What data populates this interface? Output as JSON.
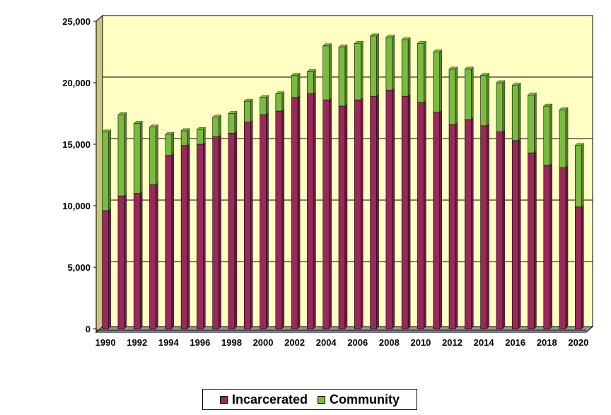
{
  "chart_data": {
    "type": "bar",
    "stacked": true,
    "title": "",
    "xlabel": "",
    "ylabel": "",
    "ylim": [
      0,
      25000
    ],
    "yticks": [
      0,
      5000,
      10000,
      15000,
      20000,
      25000
    ],
    "ytick_labels": [
      "0",
      "5,000",
      "10,000",
      "15,000",
      "20,000",
      "25,000"
    ],
    "grid": true,
    "legend_position": "bottom",
    "categories": [
      "1990",
      "1991",
      "1992",
      "1993",
      "1994",
      "1995",
      "1996",
      "1997",
      "1998",
      "1999",
      "2000",
      "2001",
      "2002",
      "2003",
      "2004",
      "2005",
      "2006",
      "2007",
      "2008",
      "2009",
      "2010",
      "2011",
      "2012",
      "2013",
      "2014",
      "2015",
      "2016",
      "2017",
      "2018",
      "2019",
      "2020"
    ],
    "x_tick_labels": [
      "1990",
      "1992",
      "1994",
      "1996",
      "1998",
      "2000",
      "2002",
      "2004",
      "2006",
      "2008",
      "2010",
      "2012",
      "2014",
      "2016",
      "2018",
      "2020"
    ],
    "series": [
      {
        "name": "Incarcerated",
        "color": "#99295a",
        "values": [
          9600,
          10800,
          11000,
          11700,
          14100,
          14900,
          15000,
          15600,
          15900,
          16800,
          17400,
          17700,
          18800,
          19100,
          18600,
          18100,
          18600,
          18900,
          19400,
          18900,
          18400,
          17600,
          16600,
          17000,
          16500,
          16000,
          15300,
          14300,
          13300,
          13100,
          9900
        ]
      },
      {
        "name": "Community",
        "color": "#7aba3e",
        "values": [
          6400,
          6600,
          5700,
          4700,
          1700,
          1200,
          1200,
          1600,
          1600,
          1700,
          1400,
          1400,
          1800,
          1800,
          4400,
          4800,
          4600,
          4900,
          4300,
          4600,
          4800,
          4900,
          4500,
          4100,
          4100,
          4000,
          4500,
          4700,
          4800,
          4700,
          5000
        ]
      }
    ]
  }
}
